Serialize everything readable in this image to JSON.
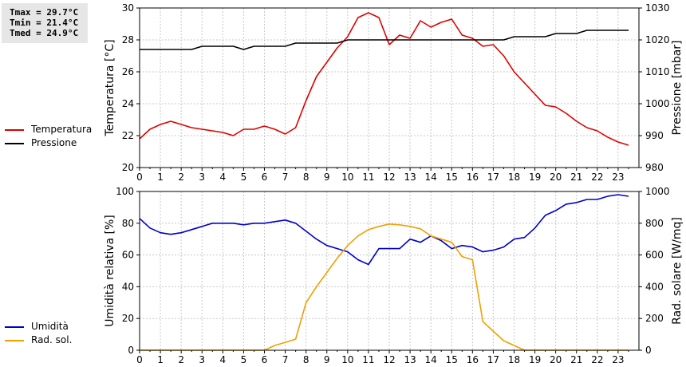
{
  "stats": {
    "tmax": "Tmax = 29.7°C",
    "tmin": "Tmin = 21.4°C",
    "tmed": "Tmed = 24.9°C"
  },
  "legend_top": [
    {
      "label": "Temperatura",
      "color": "#dd0000"
    },
    {
      "label": "Pressione",
      "color": "#000000"
    }
  ],
  "legend_bottom": [
    {
      "label": "Umidità",
      "color": "#0000cc"
    },
    {
      "label": "Rad. sol.",
      "color": "#f0a000"
    }
  ],
  "chart_data": [
    {
      "type": "line",
      "xlim": [
        0,
        24
      ],
      "x_ticks": [
        0,
        1,
        2,
        3,
        4,
        5,
        6,
        7,
        8,
        9,
        10,
        11,
        12,
        13,
        14,
        15,
        16,
        17,
        18,
        19,
        20,
        21,
        22,
        23
      ],
      "grid": true,
      "left_axis": {
        "label": "Temperatura [°C]",
        "ylim": [
          20,
          30
        ],
        "ticks": [
          20,
          22,
          24,
          26,
          28,
          30
        ]
      },
      "right_axis": {
        "label": "Pressione [mbar]",
        "ylim": [
          980,
          1030
        ],
        "ticks": [
          980,
          990,
          1000,
          1010,
          1020,
          1030
        ]
      },
      "series": [
        {
          "name": "Temperatura",
          "axis": "left",
          "color": "#dd0000",
          "x": [
            0,
            0.5,
            1,
            1.5,
            2,
            2.5,
            3,
            3.5,
            4,
            4.5,
            5,
            5.5,
            6,
            6.5,
            7,
            7.5,
            8,
            8.5,
            9,
            9.5,
            10,
            10.5,
            11,
            11.5,
            12,
            12.5,
            13,
            13.5,
            14,
            14.5,
            15,
            15.5,
            16,
            16.5,
            17,
            17.5,
            18,
            18.5,
            19,
            19.5,
            20,
            20.5,
            21,
            21.5,
            22,
            22.5,
            23,
            23.5
          ],
          "y": [
            21.8,
            22.4,
            22.7,
            22.9,
            22.7,
            22.5,
            22.4,
            22.3,
            22.2,
            22.0,
            22.4,
            22.4,
            22.6,
            22.4,
            22.1,
            22.5,
            24.2,
            25.7,
            26.6,
            27.5,
            28.2,
            29.4,
            29.7,
            29.4,
            27.7,
            28.3,
            28.1,
            29.2,
            28.8,
            29.1,
            29.3,
            28.3,
            28.1,
            27.6,
            27.7,
            27.0,
            26.0,
            25.3,
            24.6,
            23.9,
            23.8,
            23.4,
            22.9,
            22.5,
            22.3,
            21.9,
            21.6,
            21.4
          ]
        },
        {
          "name": "Pressione",
          "axis": "right",
          "color": "#000000",
          "x": [
            0,
            2.5,
            3,
            4.5,
            5,
            5.5,
            7,
            7.5,
            9.5,
            10,
            16.5,
            17,
            17.5,
            18,
            19.5,
            20,
            21,
            21.5,
            23.5
          ],
          "y": [
            1017,
            1017,
            1018,
            1018,
            1017,
            1018,
            1018,
            1019,
            1019,
            1020,
            1020,
            1020,
            1020,
            1021,
            1021,
            1022,
            1022,
            1023,
            1023
          ]
        }
      ]
    },
    {
      "type": "line",
      "xlim": [
        0,
        24
      ],
      "x_ticks": [
        0,
        1,
        2,
        3,
        4,
        5,
        6,
        7,
        8,
        9,
        10,
        11,
        12,
        13,
        14,
        15,
        16,
        17,
        18,
        19,
        20,
        21,
        22,
        23
      ],
      "grid": true,
      "left_axis": {
        "label": "Umidità relativa [%]",
        "ylim": [
          0,
          100
        ],
        "ticks": [
          0,
          20,
          40,
          60,
          80,
          100
        ]
      },
      "right_axis": {
        "label": "Rad. solare [W/mq]",
        "ylim": [
          0,
          1000
        ],
        "ticks": [
          0,
          200,
          400,
          600,
          800,
          1000
        ]
      },
      "series": [
        {
          "name": "Umidità",
          "axis": "left",
          "color": "#0000cc",
          "x": [
            0,
            0.5,
            1,
            1.5,
            2,
            2.5,
            3,
            3.5,
            4,
            4.5,
            5,
            5.5,
            6,
            6.5,
            7,
            7.5,
            8,
            8.5,
            9,
            9.5,
            10,
            10.5,
            11,
            11.5,
            12,
            12.5,
            13,
            13.5,
            14,
            14.5,
            15,
            15.5,
            16,
            16.5,
            17,
            17.5,
            18,
            18.5,
            19,
            19.5,
            20,
            20.5,
            21,
            21.5,
            22,
            22.5,
            23,
            23.5
          ],
          "y": [
            83,
            77,
            74,
            73,
            74,
            76,
            78,
            80,
            80,
            80,
            79,
            80,
            80,
            81,
            82,
            80,
            75,
            70,
            66,
            64,
            62,
            57,
            54,
            64,
            64,
            64,
            70,
            68,
            72,
            69,
            64,
            66,
            65,
            62,
            63,
            65,
            70,
            71,
            77,
            85,
            88,
            92,
            93,
            95,
            95,
            97,
            98,
            97
          ]
        },
        {
          "name": "Rad. sol.",
          "axis": "right",
          "color": "#f0a000",
          "x": [
            0,
            0.5,
            1,
            1.5,
            2,
            2.5,
            3,
            3.5,
            4,
            4.5,
            5,
            5.5,
            6,
            6.5,
            7,
            7.5,
            8,
            8.5,
            9,
            9.5,
            10,
            10.5,
            11,
            11.5,
            12,
            12.5,
            13,
            13.5,
            14,
            14.5,
            15,
            15.5,
            16,
            16.5,
            17,
            17.5,
            18,
            18.5,
            19,
            19.5,
            20,
            20.5,
            21,
            21.5,
            22,
            22.5,
            23,
            23.5
          ],
          "y": [
            0,
            0,
            0,
            0,
            0,
            0,
            0,
            0,
            0,
            0,
            0,
            0,
            0,
            30,
            50,
            70,
            300,
            400,
            490,
            580,
            660,
            720,
            760,
            780,
            795,
            790,
            780,
            765,
            720,
            700,
            680,
            590,
            570,
            180,
            120,
            60,
            30,
            0,
            0,
            0,
            0,
            0,
            0,
            0,
            0,
            0,
            0,
            0
          ]
        }
      ]
    }
  ]
}
